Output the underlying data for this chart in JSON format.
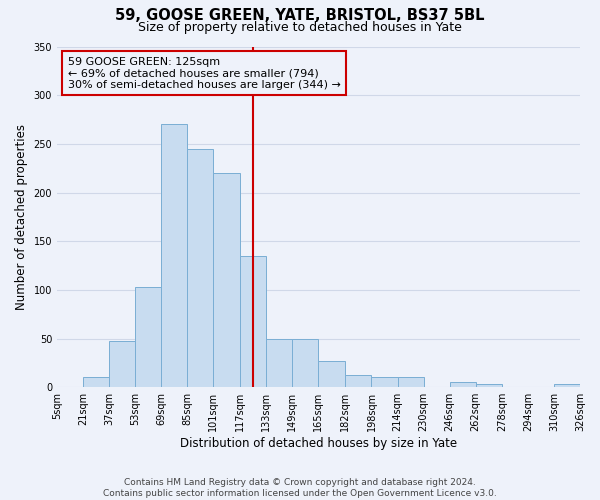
{
  "title": "59, GOOSE GREEN, YATE, BRISTOL, BS37 5BL",
  "subtitle": "Size of property relative to detached houses in Yate",
  "xlabel": "Distribution of detached houses by size in Yate",
  "ylabel": "Number of detached properties",
  "bar_edges": [
    5,
    21,
    37,
    53,
    69,
    85,
    101,
    117,
    133,
    149,
    165,
    182,
    198,
    214,
    230,
    246,
    262,
    278,
    294,
    310,
    326
  ],
  "bar_heights": [
    0,
    10,
    47,
    103,
    270,
    245,
    220,
    135,
    50,
    50,
    27,
    13,
    10,
    10,
    0,
    5,
    3,
    0,
    0,
    3
  ],
  "bar_color": "#c8dcf0",
  "bar_edgecolor": "#7aaed4",
  "property_value": 125,
  "vline_color": "#cc0000",
  "annotation_line1": "59 GOOSE GREEN: 125sqm",
  "annotation_line2": "← 69% of detached houses are smaller (794)",
  "annotation_line3": "30% of semi-detached houses are larger (344) →",
  "annotation_box_edgecolor": "#cc0000",
  "ylim": [
    0,
    350
  ],
  "yticks": [
    0,
    50,
    100,
    150,
    200,
    250,
    300,
    350
  ],
  "tick_labels": [
    "5sqm",
    "21sqm",
    "37sqm",
    "53sqm",
    "69sqm",
    "85sqm",
    "101sqm",
    "117sqm",
    "133sqm",
    "149sqm",
    "165sqm",
    "182sqm",
    "198sqm",
    "214sqm",
    "230sqm",
    "246sqm",
    "262sqm",
    "278sqm",
    "294sqm",
    "310sqm",
    "326sqm"
  ],
  "footer_text": "Contains HM Land Registry data © Crown copyright and database right 2024.\nContains public sector information licensed under the Open Government Licence v3.0.",
  "bg_color": "#eef2fa",
  "grid_color": "#d0d8e8",
  "title_fontsize": 10.5,
  "subtitle_fontsize": 9,
  "axis_label_fontsize": 8.5,
  "tick_fontsize": 7,
  "annotation_fontsize": 8,
  "footer_fontsize": 6.5
}
